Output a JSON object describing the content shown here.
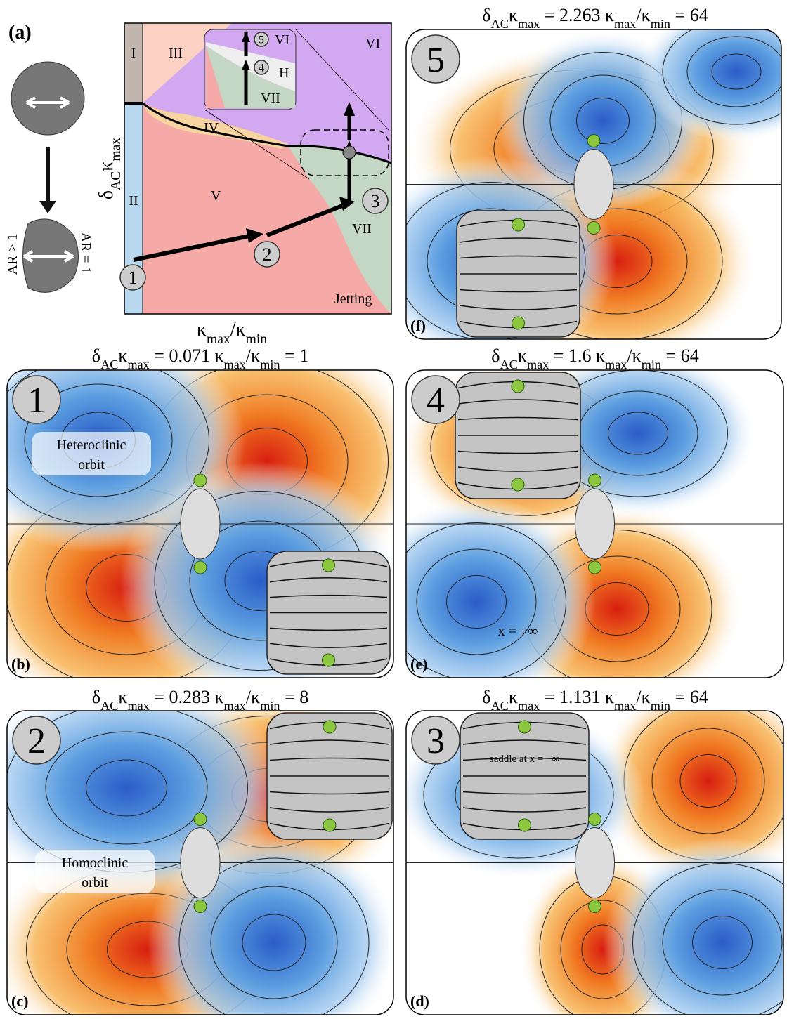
{
  "symbols": {
    "delta": "δ",
    "ac": "AC",
    "kappa": "κ",
    "max": "max",
    "min": "min",
    "equals": "=",
    "slash": "/"
  },
  "panel_a": {
    "label": "(a)",
    "regions": {
      "I": "I",
      "II": "II",
      "III": "III",
      "IV": "IV",
      "V": "V",
      "VI": "VI",
      "VI_inset": "VI",
      "VII": "VII",
      "VII_inset": "VII",
      "H": "H",
      "jetting": "Jetting"
    },
    "path_markers": [
      "1",
      "2",
      "3"
    ],
    "inset_markers": [
      "4",
      "5"
    ],
    "shape_labels": {
      "ar_gt": "AR > 1",
      "ar_eq": "AR = 1"
    }
  },
  "panels": {
    "b": {
      "number": "1",
      "label": "(b)",
      "delta_kappa": "0.071",
      "ratio": "1",
      "annotation": [
        "Heteroclinic",
        "orbit"
      ]
    },
    "c": {
      "number": "2",
      "label": "(c)",
      "delta_kappa": "0.283",
      "ratio": "8",
      "annotation": [
        "Homoclinic",
        "orbit"
      ]
    },
    "d": {
      "number": "3",
      "label": "(d)",
      "delta_kappa": "1.131",
      "ratio": "64",
      "inset_note": [
        "saddle at",
        "x = −∞"
      ]
    },
    "e": {
      "number": "4",
      "label": "(e)",
      "delta_kappa": "1.6",
      "ratio": "64",
      "inset_note": [
        "x = −∞"
      ]
    },
    "f": {
      "number": "5",
      "label": "(f)",
      "delta_kappa": "2.263",
      "ratio": "64"
    }
  }
}
